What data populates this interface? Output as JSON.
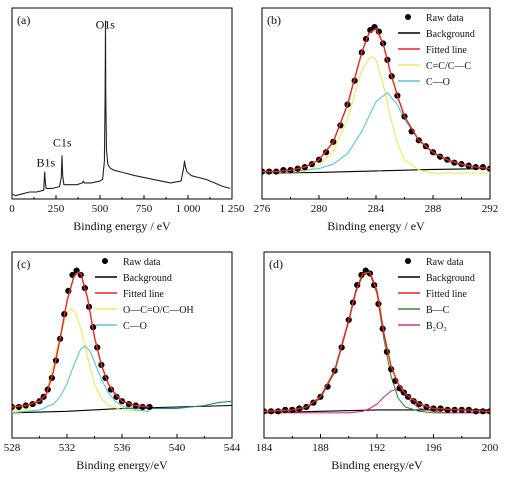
{
  "chart_data": [
    {
      "type": "line",
      "panel_label": "(a)",
      "xlabel": "Binding energy / eV",
      "xlim": [
        0,
        1250
      ],
      "xticks": [
        0,
        250,
        500,
        750,
        1000,
        1250
      ],
      "xtick_labels": [
        "0",
        "250",
        "500",
        "750",
        "1 000",
        "1 250"
      ],
      "ylim": [
        0,
        1
      ],
      "grid": false,
      "annotations": [
        {
          "text": "O1s",
          "x": 530,
          "y": 0.93
        },
        {
          "text": "C1s",
          "x": 285,
          "y": 0.28
        },
        {
          "text": "B1s",
          "x": 192,
          "y": 0.17
        }
      ],
      "series": [
        {
          "color": "#222222",
          "x": [
            0,
            20,
            60,
            100,
            140,
            180,
            186,
            190,
            194,
            200,
            230,
            270,
            280,
            284,
            288,
            295,
            330,
            370,
            400,
            405,
            410,
            450,
            500,
            515,
            525,
            529,
            531,
            533,
            537,
            545,
            560,
            580,
            620,
            700,
            800,
            900,
            960,
            975,
            980,
            985,
            995,
            1020,
            1060,
            1100,
            1150,
            1200,
            1240
          ],
          "y": [
            0.02,
            0.01,
            0.02,
            0.03,
            0.03,
            0.04,
            0.14,
            0.08,
            0.05,
            0.05,
            0.05,
            0.06,
            0.11,
            0.23,
            0.12,
            0.07,
            0.07,
            0.07,
            0.08,
            0.09,
            0.08,
            0.08,
            0.09,
            0.1,
            0.2,
            0.55,
            0.97,
            0.55,
            0.26,
            0.18,
            0.16,
            0.15,
            0.14,
            0.12,
            0.1,
            0.08,
            0.09,
            0.16,
            0.2,
            0.17,
            0.14,
            0.12,
            0.11,
            0.1,
            0.08,
            0.06,
            0.05
          ]
        }
      ]
    },
    {
      "type": "line",
      "panel_label": "(b)",
      "xlabel": "Binding energy / eV",
      "xlim": [
        276,
        292
      ],
      "xticks": [
        276,
        280,
        284,
        288,
        292
      ],
      "xtick_labels": [
        "276",
        "280",
        "284",
        "288",
        "292"
      ],
      "ylim": [
        0,
        1
      ],
      "grid": false,
      "legend": "top-right",
      "legend_entries": [
        {
          "label": "Raw data",
          "style": "dot",
          "color": "#000000"
        },
        {
          "label": "Background",
          "style": "line",
          "color": "#000000"
        },
        {
          "label": "Fitted line",
          "style": "line",
          "color": "#e8251f"
        },
        {
          "label": "C=C/C—C",
          "style": "line",
          "color": "#f2e65a"
        },
        {
          "label": "C—O",
          "style": "line",
          "color": "#5bc6d6"
        }
      ],
      "series": [
        {
          "name": "Raw data",
          "style": "dots",
          "color": "#000000",
          "x": [
            276,
            276.5,
            277,
            277.5,
            278,
            278.5,
            279,
            279.5,
            280,
            280.5,
            281,
            281.5,
            282,
            282.5,
            283,
            283.3,
            283.6,
            283.9,
            284.2,
            284.5,
            284.8,
            285.1,
            285.5,
            286,
            286.5,
            287,
            287.5,
            288,
            288.5,
            289,
            289.5,
            290,
            290.5,
            291,
            291.5,
            292
          ],
          "y": [
            0.03,
            0.03,
            0.03,
            0.04,
            0.04,
            0.05,
            0.06,
            0.08,
            0.11,
            0.16,
            0.23,
            0.34,
            0.48,
            0.64,
            0.83,
            0.92,
            0.98,
            1.0,
            0.97,
            0.89,
            0.78,
            0.67,
            0.54,
            0.4,
            0.3,
            0.24,
            0.2,
            0.16,
            0.13,
            0.11,
            0.09,
            0.08,
            0.07,
            0.06,
            0.06,
            0.05
          ]
        },
        {
          "name": "Background",
          "style": "line",
          "color": "#000000",
          "x": [
            276,
            280,
            284,
            288,
            292
          ],
          "y": [
            0.02,
            0.025,
            0.035,
            0.045,
            0.05
          ]
        },
        {
          "name": "Fitted line",
          "style": "line",
          "color": "#e8251f",
          "x": [
            276,
            277,
            278,
            279,
            280,
            281,
            282,
            283,
            283.5,
            284,
            284.5,
            285,
            285.5,
            286,
            287,
            288,
            289,
            290,
            291,
            292
          ],
          "y": [
            0.03,
            0.03,
            0.04,
            0.06,
            0.11,
            0.23,
            0.48,
            0.83,
            0.96,
            0.99,
            0.89,
            0.7,
            0.54,
            0.4,
            0.24,
            0.16,
            0.11,
            0.08,
            0.06,
            0.05
          ]
        },
        {
          "name": "C=C/C—C",
          "style": "line",
          "color": "#f2e65a",
          "x": [
            276,
            279,
            280,
            281,
            282,
            282.5,
            283,
            283.5,
            283.8,
            284,
            284.5,
            285,
            285.5,
            286,
            287,
            288,
            292
          ],
          "y": [
            0.02,
            0.03,
            0.07,
            0.17,
            0.38,
            0.55,
            0.71,
            0.79,
            0.8,
            0.78,
            0.62,
            0.4,
            0.22,
            0.11,
            0.04,
            0.02,
            0.02
          ]
        },
        {
          "name": "C—O",
          "style": "line",
          "color": "#5bc6d6",
          "x": [
            276,
            278,
            280,
            281,
            282,
            283,
            284,
            284.8,
            285.5,
            286,
            287,
            288,
            289,
            290,
            291,
            292
          ],
          "y": [
            0.02,
            0.03,
            0.05,
            0.08,
            0.15,
            0.3,
            0.5,
            0.56,
            0.48,
            0.38,
            0.24,
            0.15,
            0.1,
            0.07,
            0.05,
            0.04
          ]
        }
      ]
    },
    {
      "type": "line",
      "panel_label": "(c)",
      "xlabel": "Binding energy/eV",
      "xlim": [
        528,
        544
      ],
      "xticks": [
        528,
        532,
        536,
        540,
        544
      ],
      "xtick_labels": [
        "528",
        "532",
        "536",
        "540",
        "544"
      ],
      "ylim": [
        0,
        1
      ],
      "grid": false,
      "legend": "top-right",
      "legend_entries": [
        {
          "label": "Raw data",
          "style": "dot",
          "color": "#000000"
        },
        {
          "label": "Background",
          "style": "line",
          "color": "#000000"
        },
        {
          "label": "Fitted line",
          "style": "line",
          "color": "#e8251f"
        },
        {
          "label": "O—C=O/C—OH",
          "style": "line",
          "color": "#f2e65a"
        },
        {
          "label": "C—O",
          "style": "line",
          "color": "#5bc6d6"
        }
      ],
      "series": [
        {
          "name": "Raw data",
          "style": "dots",
          "color": "#000000",
          "x": [
            528,
            528.5,
            529,
            529.5,
            530,
            530.3,
            530.6,
            530.9,
            531.2,
            531.5,
            531.8,
            532.1,
            532.4,
            532.7,
            533,
            533.3,
            533.6,
            533.9,
            534.2,
            534.5,
            534.8,
            535.2,
            535.6,
            536,
            536.5,
            537,
            537.5,
            538
          ],
          "y": [
            0.06,
            0.06,
            0.07,
            0.08,
            0.1,
            0.13,
            0.18,
            0.26,
            0.38,
            0.53,
            0.7,
            0.86,
            0.97,
            1.0,
            0.97,
            0.88,
            0.75,
            0.61,
            0.47,
            0.35,
            0.26,
            0.18,
            0.13,
            0.1,
            0.08,
            0.07,
            0.06,
            0.06
          ]
        },
        {
          "name": "Background",
          "style": "line",
          "color": "#000000",
          "x": [
            528,
            532,
            536,
            540,
            544
          ],
          "y": [
            0.02,
            0.03,
            0.05,
            0.06,
            0.07
          ]
        },
        {
          "name": "Fitted line",
          "style": "line",
          "color": "#e8251f",
          "x": [
            528,
            529,
            530,
            530.5,
            531,
            531.5,
            532,
            532.5,
            532.8,
            533,
            533.5,
            534,
            534.5,
            535,
            535.5,
            536,
            537,
            538
          ],
          "y": [
            0.06,
            0.07,
            0.1,
            0.15,
            0.3,
            0.53,
            0.79,
            0.96,
            0.99,
            0.98,
            0.81,
            0.54,
            0.35,
            0.22,
            0.15,
            0.1,
            0.07,
            0.06
          ]
        },
        {
          "name": "O—C=O/C—OH",
          "style": "line",
          "color": "#f2e65a",
          "x": [
            528,
            529,
            530,
            530.5,
            531,
            531.5,
            532,
            532.3,
            532.6,
            533,
            533.5,
            534,
            534.5,
            535,
            536,
            538
          ],
          "y": [
            0.03,
            0.04,
            0.09,
            0.17,
            0.35,
            0.55,
            0.71,
            0.74,
            0.71,
            0.6,
            0.4,
            0.22,
            0.12,
            0.07,
            0.04,
            0.03
          ]
        },
        {
          "name": "C—O",
          "style": "line",
          "color": "#5bc6d6",
          "x": [
            528,
            530,
            531,
            531.5,
            532,
            532.5,
            533,
            533.3,
            533.7,
            534,
            534.5,
            535,
            535.5,
            536,
            537,
            538
          ],
          "y": [
            0.02,
            0.04,
            0.08,
            0.13,
            0.22,
            0.35,
            0.46,
            0.48,
            0.44,
            0.37,
            0.25,
            0.16,
            0.1,
            0.07,
            0.04,
            0.03
          ]
        },
        {
          "name": "Tail",
          "style": "line",
          "color": "#1e8a8a",
          "x": [
            536,
            538,
            540,
            541,
            542,
            543,
            544
          ],
          "y": [
            0.05,
            0.05,
            0.05,
            0.06,
            0.07,
            0.09,
            0.1
          ]
        }
      ]
    },
    {
      "type": "line",
      "panel_label": "(d)",
      "xlabel": "Binding energy/eV",
      "xlim": [
        184,
        200
      ],
      "xticks": [
        184,
        188,
        192,
        196,
        200
      ],
      "xtick_labels": [
        "184",
        "188",
        "192",
        "196",
        "200"
      ],
      "ylim": [
        0,
        1
      ],
      "grid": false,
      "legend": "top-right",
      "legend_entries": [
        {
          "label": "Raw data",
          "style": "dot",
          "color": "#000000"
        },
        {
          "label": "Background",
          "style": "line",
          "color": "#000000"
        },
        {
          "label": "Fitted line",
          "style": "line",
          "color": "#e8251f"
        },
        {
          "label": "B—C",
          "style": "line",
          "color": "#3a8a2a"
        },
        {
          "label": "B₂O₃",
          "style": "line",
          "color": "#d6338c"
        }
      ],
      "series": [
        {
          "name": "Raw data",
          "style": "dots",
          "color": "#000000",
          "x": [
            184,
            184.5,
            185,
            185.5,
            186,
            186.5,
            187,
            187.5,
            188,
            188.5,
            189,
            189.5,
            190,
            190.3,
            190.6,
            190.9,
            191.2,
            191.5,
            191.8,
            192.1,
            192.4,
            192.7,
            193,
            193.3,
            193.6,
            193.9,
            194.2,
            194.6,
            195,
            195.5,
            196,
            196.5,
            197,
            197.5,
            198,
            198.5,
            199,
            199.5,
            200
          ],
          "y": [
            0.03,
            0.03,
            0.03,
            0.04,
            0.04,
            0.05,
            0.06,
            0.09,
            0.13,
            0.2,
            0.31,
            0.47,
            0.66,
            0.78,
            0.9,
            0.97,
            1.0,
            0.98,
            0.9,
            0.77,
            0.6,
            0.44,
            0.32,
            0.24,
            0.19,
            0.16,
            0.13,
            0.1,
            0.08,
            0.06,
            0.05,
            0.05,
            0.04,
            0.04,
            0.04,
            0.04,
            0.03,
            0.03,
            0.03
          ]
        },
        {
          "name": "Background",
          "style": "line",
          "color": "#000000",
          "x": [
            184,
            188,
            192,
            196,
            200
          ],
          "y": [
            0.02,
            0.03,
            0.04,
            0.04,
            0.04
          ]
        },
        {
          "name": "Fitted line",
          "style": "line",
          "color": "#e8251f",
          "x": [
            184,
            186,
            187,
            188,
            189,
            190,
            190.5,
            191,
            191.5,
            192,
            192.5,
            193,
            193.5,
            194,
            195,
            196,
            198,
            200
          ],
          "y": [
            0.03,
            0.04,
            0.06,
            0.13,
            0.31,
            0.66,
            0.86,
            0.98,
            0.99,
            0.86,
            0.56,
            0.34,
            0.22,
            0.15,
            0.08,
            0.05,
            0.04,
            0.03
          ]
        },
        {
          "name": "B—C",
          "style": "line",
          "color": "#3a8a2a",
          "x": [
            184,
            186,
            187,
            188,
            189,
            190,
            190.5,
            191,
            191.5,
            192,
            192.5,
            193,
            193.5,
            194,
            195,
            196,
            198,
            200
          ],
          "y": [
            0.02,
            0.03,
            0.05,
            0.12,
            0.3,
            0.65,
            0.85,
            0.97,
            0.98,
            0.84,
            0.52,
            0.27,
            0.12,
            0.06,
            0.03,
            0.02,
            0.02,
            0.02
          ]
        },
        {
          "name": "B₂O₃",
          "style": "line",
          "color": "#d6338c",
          "x": [
            184,
            190,
            191,
            191.5,
            192,
            192.5,
            193,
            193.3,
            193.6,
            194,
            194.5,
            195,
            196,
            197,
            200
          ],
          "y": [
            0.02,
            0.02,
            0.03,
            0.05,
            0.08,
            0.13,
            0.17,
            0.18,
            0.17,
            0.14,
            0.09,
            0.05,
            0.03,
            0.02,
            0.02
          ]
        }
      ]
    }
  ]
}
